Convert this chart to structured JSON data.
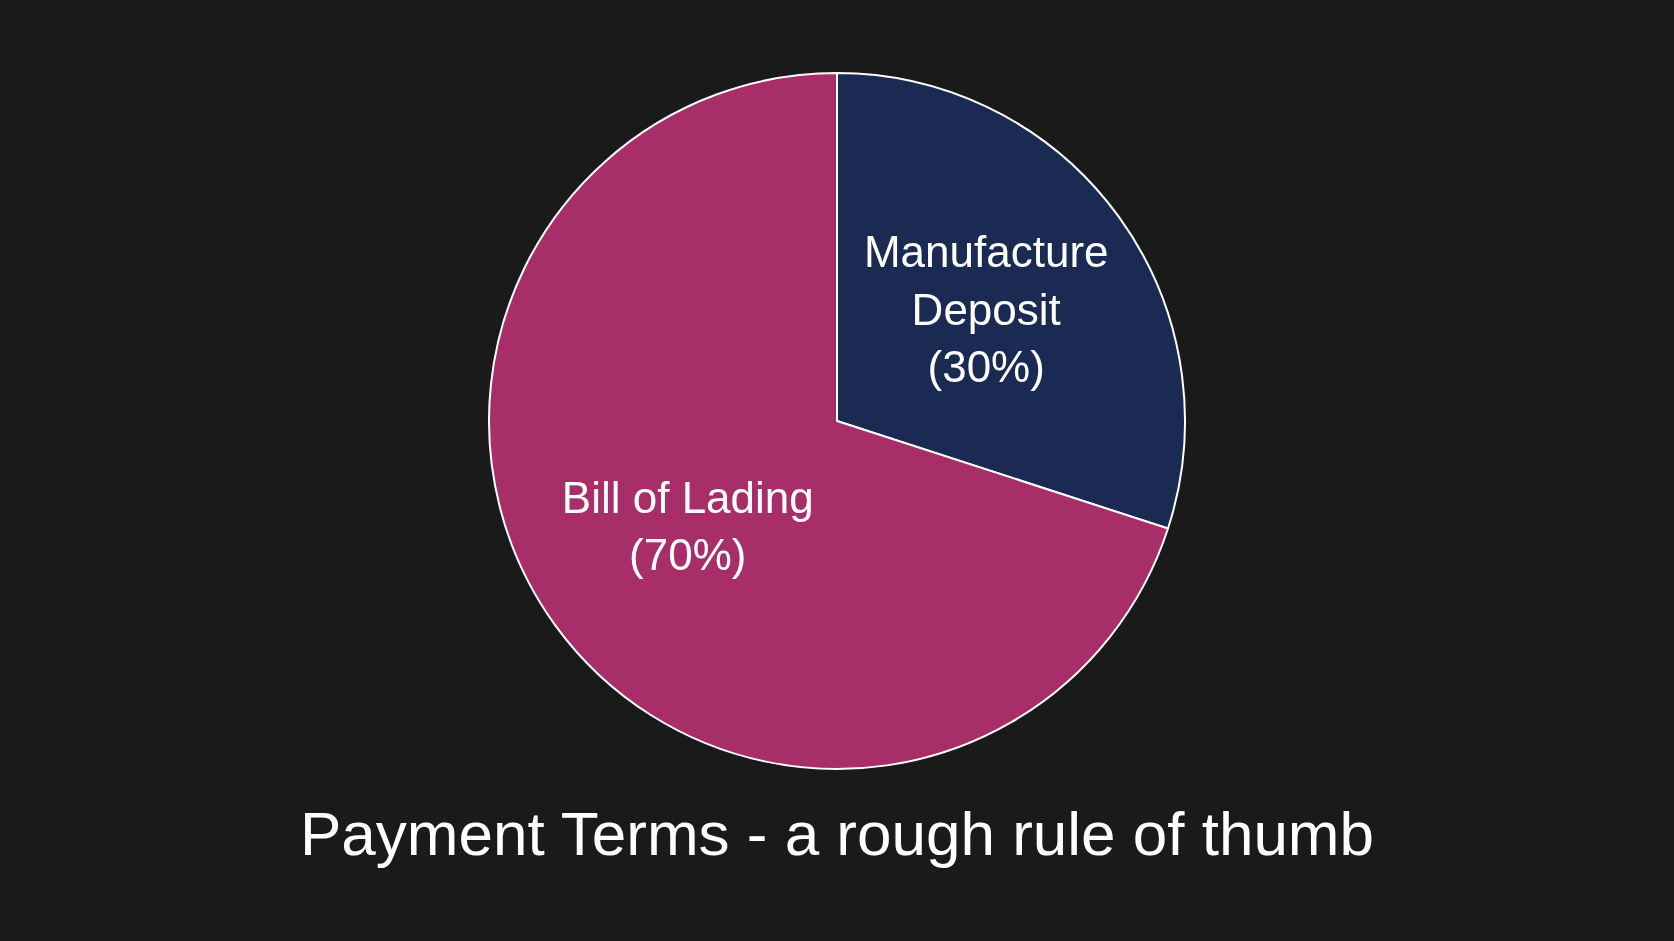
{
  "chart_data": {
    "type": "pie",
    "title": "Payment Terms - a rough rule of thumb",
    "categories": [
      "Manufacture Deposit",
      "Bill of Lading"
    ],
    "values": [
      30,
      70
    ],
    "colors": [
      "#1b2a52",
      "#a82e6a"
    ],
    "value_labels": [
      "(30%)",
      "(70%)"
    ]
  }
}
